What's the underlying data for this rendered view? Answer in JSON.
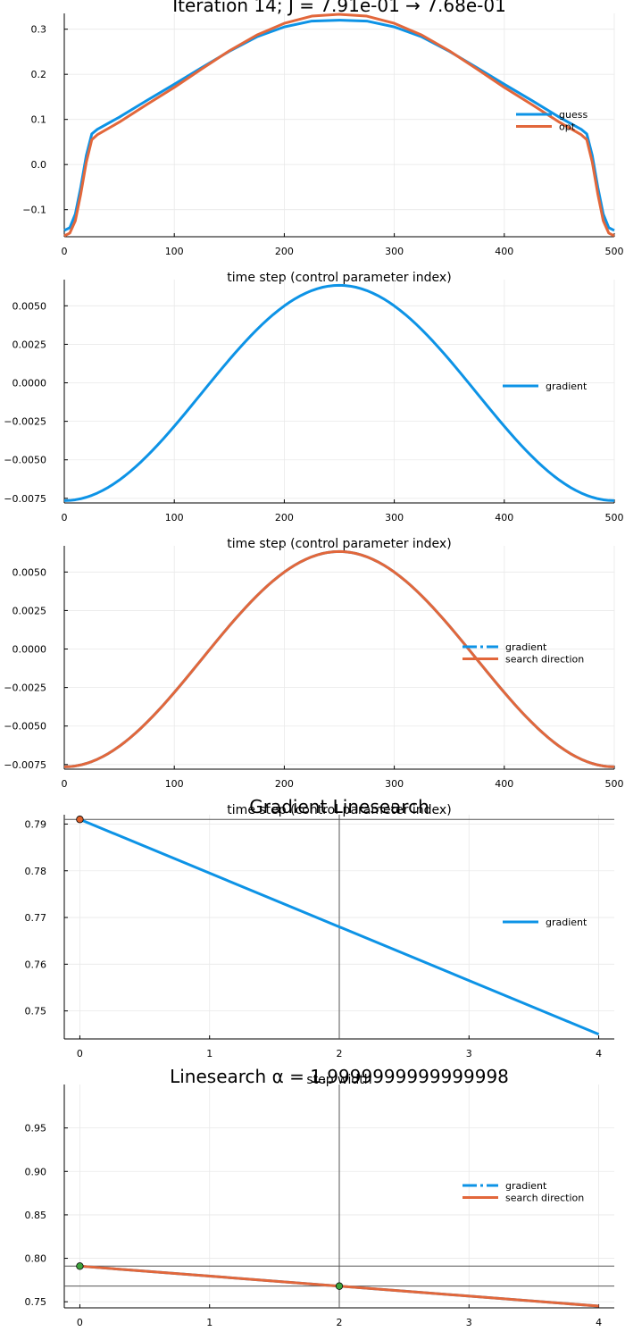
{
  "colors": {
    "blue": "#0d93e6",
    "orange": "#e2673b",
    "marker_orange": "#e0622c",
    "marker_green": "#3da23c",
    "grid": "#e9e9e9",
    "refline": "#555555"
  },
  "chart_data": [
    {
      "type": "line",
      "title": "Iteration 14; J = 7.91e-01 → 7.68e-01",
      "xlabel": "time step (control parameter index)",
      "ylabel": "",
      "xlim": [
        0,
        500
      ],
      "ylim": [
        -0.16,
        0.335
      ],
      "xticks": [
        0,
        100,
        200,
        300,
        400,
        500
      ],
      "yticks": [
        -0.1,
        0.0,
        0.1,
        0.2,
        0.3
      ],
      "ytick_labels": [
        "−0.1",
        "0.0",
        "0.1",
        "0.2",
        "0.3"
      ],
      "legend": "right",
      "series": [
        {
          "name": "guess",
          "color": "blue",
          "x": [
            0,
            5,
            10,
            15,
            20,
            25,
            30,
            50,
            75,
            100,
            125,
            150,
            175,
            200,
            225,
            250,
            275,
            300,
            325,
            350,
            375,
            400,
            425,
            450,
            470,
            475,
            480,
            485,
            490,
            495,
            500
          ],
          "y": [
            -0.146,
            -0.14,
            -0.11,
            -0.05,
            0.02,
            0.068,
            0.078,
            0.105,
            0.142,
            0.178,
            0.215,
            0.251,
            0.283,
            0.305,
            0.318,
            0.32,
            0.318,
            0.305,
            0.283,
            0.251,
            0.215,
            0.178,
            0.142,
            0.105,
            0.078,
            0.068,
            0.02,
            -0.05,
            -0.11,
            -0.14,
            -0.146
          ]
        },
        {
          "name": "opt",
          "color": "orange",
          "x": [
            0,
            5,
            10,
            15,
            20,
            25,
            30,
            50,
            75,
            100,
            125,
            150,
            175,
            200,
            225,
            250,
            275,
            300,
            325,
            350,
            375,
            400,
            425,
            450,
            470,
            475,
            480,
            485,
            490,
            495,
            500
          ],
          "y": [
            -0.158,
            -0.152,
            -0.125,
            -0.065,
            0.005,
            0.055,
            0.066,
            0.094,
            0.133,
            0.171,
            0.212,
            0.252,
            0.287,
            0.313,
            0.329,
            0.333,
            0.329,
            0.313,
            0.287,
            0.252,
            0.212,
            0.171,
            0.133,
            0.094,
            0.066,
            0.055,
            0.005,
            -0.065,
            -0.125,
            -0.152,
            -0.158
          ]
        }
      ]
    },
    {
      "type": "line",
      "title": "",
      "xlabel": "time step (control parameter index)",
      "ylabel": "",
      "xlim": [
        0,
        500
      ],
      "ylim": [
        -0.0078,
        0.0067
      ],
      "xticks": [
        0,
        100,
        200,
        300,
        400,
        500
      ],
      "yticks": [
        -0.0075,
        -0.005,
        -0.0025,
        0.0,
        0.0025,
        0.005
      ],
      "ytick_labels": [
        "−0.0075",
        "−0.0050",
        "−0.0025",
        "0.0000",
        "0.0025",
        "0.0050"
      ],
      "legend": "right",
      "series": [
        {
          "name": "gradient",
          "color": "blue",
          "curve": "cosine",
          "amplitude": 0.00699,
          "offset": -0.00066
        }
      ]
    },
    {
      "type": "line",
      "title": "",
      "xlabel": "time step (control parameter index)",
      "ylabel": "",
      "xlim": [
        0,
        500
      ],
      "ylim": [
        -0.0078,
        0.0067
      ],
      "xticks": [
        0,
        100,
        200,
        300,
        400,
        500
      ],
      "yticks": [
        -0.0075,
        -0.005,
        -0.0025,
        0.0,
        0.0025,
        0.005
      ],
      "ytick_labels": [
        "−0.0075",
        "−0.0050",
        "−0.0025",
        "0.0000",
        "0.0025",
        "0.0050"
      ],
      "legend": "right",
      "series": [
        {
          "name": "gradient",
          "color": "blue",
          "dashed": true,
          "curve": "cosine",
          "amplitude": 0.00699,
          "offset": -0.00066
        },
        {
          "name": "search direction",
          "color": "orange",
          "curve": "cosine",
          "amplitude": 0.00699,
          "offset": -0.00066
        }
      ]
    },
    {
      "type": "line",
      "title": "Gradient Linesearch",
      "xlabel": "step width",
      "ylabel": "",
      "xlim": [
        -0.12,
        4.12
      ],
      "ylim": [
        0.744,
        0.792
      ],
      "xticks": [
        0,
        1,
        2,
        3,
        4
      ],
      "yticks": [
        0.75,
        0.76,
        0.77,
        0.78,
        0.79
      ],
      "ytick_labels": [
        "0.75",
        "0.76",
        "0.77",
        "0.78",
        "0.79"
      ],
      "legend": "right",
      "hlines": [
        0.791
      ],
      "vlines": [
        2
      ],
      "markers": [
        {
          "x": 0,
          "y": 0.791,
          "color": "marker_orange"
        }
      ],
      "series": [
        {
          "name": "gradient",
          "color": "blue",
          "x": [
            0,
            4
          ],
          "y": [
            0.791,
            0.745
          ]
        }
      ]
    },
    {
      "type": "line",
      "title": "Linesearch α = 1.9999999999999998",
      "xlabel": "",
      "ylabel": "",
      "xlim": [
        -0.12,
        4.12
      ],
      "ylim": [
        0.743,
        1.0
      ],
      "xticks": [
        0,
        1,
        2,
        3,
        4
      ],
      "yticks": [
        0.75,
        0.8,
        0.85,
        0.9,
        0.95
      ],
      "ytick_labels": [
        "0.75",
        "0.80",
        "0.85",
        "0.90",
        "0.95"
      ],
      "legend": "right",
      "hlines": [
        0.791,
        0.768
      ],
      "vlines": [
        2
      ],
      "markers": [
        {
          "x": 0,
          "y": 0.791,
          "color": "marker_green"
        },
        {
          "x": 2,
          "y": 0.768,
          "color": "marker_green"
        }
      ],
      "series": [
        {
          "name": "gradient",
          "color": "blue",
          "dashed": true,
          "x": [
            0,
            4
          ],
          "y": [
            0.791,
            0.745
          ]
        },
        {
          "name": "search direction",
          "color": "orange",
          "x": [
            0,
            4
          ],
          "y": [
            0.791,
            0.745
          ]
        }
      ]
    }
  ]
}
